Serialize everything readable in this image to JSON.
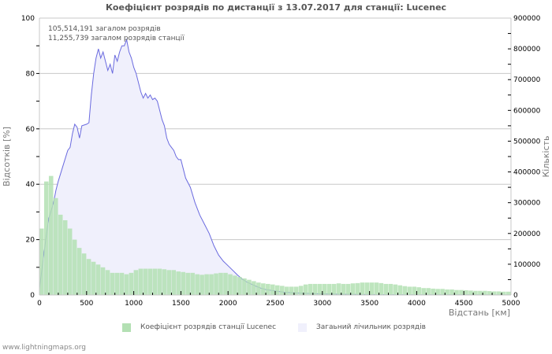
{
  "chart_data": {
    "type": "bar+area",
    "title": "Коефіцієнт розрядів по дистанції з 13.07.2017 для станції: Lucenec",
    "xlabel": "Відстань   [км]",
    "ylabel_left": "Відсотків   [%]",
    "ylabel_right": "Кількість",
    "xlim": [
      0,
      5000
    ],
    "ylim_left": [
      0,
      100
    ],
    "ylim_right": [
      0,
      900000
    ],
    "x_ticks": [
      "0",
      "500",
      "1000",
      "1500",
      "2000",
      "2500",
      "3000",
      "3500",
      "4000",
      "4500",
      "5000"
    ],
    "y_ticks_left": [
      "0",
      "20",
      "40",
      "60",
      "80",
      "100"
    ],
    "y_ticks_right": [
      "0",
      "100000",
      "200000",
      "300000",
      "400000",
      "500000",
      "600000",
      "700000",
      "800000",
      "900000"
    ],
    "grid": "horizontal at 20, 40, 60, 80 (%)",
    "legend_position": "bottom",
    "annotations": [
      "105,514,191 загалом розрядів",
      "11,255,739 загалом розрядів станції"
    ],
    "series": [
      {
        "name": "Коефіцієнт розрядів станції Lucenec",
        "type": "bar",
        "axis": "left",
        "color": "#b3e0b3",
        "x": [
          0,
          50,
          100,
          150,
          200,
          250,
          300,
          350,
          400,
          450,
          500,
          550,
          600,
          650,
          700,
          750,
          800,
          850,
          900,
          950,
          1000,
          1050,
          1100,
          1150,
          1200,
          1250,
          1300,
          1350,
          1400,
          1450,
          1500,
          1550,
          1600,
          1650,
          1700,
          1750,
          1800,
          1850,
          1900,
          1950,
          2000,
          2050,
          2100,
          2150,
          2200,
          2250,
          2300,
          2350,
          2400,
          2450,
          2500,
          2550,
          2600,
          2650,
          2700,
          2750,
          2800,
          2850,
          2900,
          2950,
          3000,
          3050,
          3100,
          3150,
          3200,
          3250,
          3300,
          3350,
          3400,
          3450,
          3500,
          3550,
          3600,
          3650,
          3700,
          3750,
          3800,
          3850,
          3900,
          3950,
          4000,
          4050,
          4100,
          4150,
          4200,
          4250,
          4300,
          4350,
          4400,
          4450,
          4500,
          4550,
          4600,
          4650,
          4700,
          4750,
          4800,
          4850,
          4900,
          4950
        ],
        "values": [
          24,
          41,
          43,
          35,
          29,
          27,
          24,
          20,
          17,
          15,
          13,
          12,
          11,
          10,
          9,
          8,
          8,
          8,
          7.5,
          8,
          9,
          9.5,
          9.5,
          9.5,
          9.5,
          9.5,
          9.3,
          9,
          9,
          8.5,
          8.3,
          8,
          8,
          7.5,
          7.3,
          7.5,
          7.5,
          7.8,
          8,
          8,
          7.5,
          7,
          6.5,
          6,
          5.5,
          5,
          4.5,
          4.2,
          4,
          3.8,
          3.5,
          3.3,
          3,
          3,
          3,
          3.3,
          3.8,
          4,
          4,
          4,
          4,
          4,
          4,
          4.2,
          4,
          4,
          4.2,
          4.3,
          4.5,
          4.5,
          4.5,
          4.5,
          4.3,
          4,
          4,
          3.8,
          3.5,
          3.2,
          3,
          3,
          2.8,
          2.5,
          2.5,
          2.3,
          2.2,
          2.2,
          2,
          2,
          1.8,
          1.8,
          1.7,
          1.6,
          1.5,
          1.5,
          1.5,
          1.4,
          1.3,
          1.3,
          1.2,
          1.2
        ]
      },
      {
        "name": "Загаьний лічильник розрядів",
        "type": "area",
        "axis": "right",
        "fill": "#f0f0fc",
        "line": "#6a6adf",
        "x": [
          0,
          25,
          50,
          75,
          100,
          125,
          150,
          175,
          200,
          250,
          300,
          325,
          350,
          375,
          400,
          425,
          450,
          500,
          525,
          550,
          575,
          600,
          625,
          650,
          675,
          700,
          725,
          750,
          775,
          800,
          825,
          850,
          875,
          900,
          925,
          950,
          975,
          1000,
          1025,
          1050,
          1075,
          1100,
          1125,
          1150,
          1175,
          1200,
          1225,
          1250,
          1275,
          1300,
          1325,
          1350,
          1375,
          1400,
          1425,
          1450,
          1475,
          1500,
          1550,
          1600,
          1650,
          1700,
          1750,
          1800,
          1850,
          1900,
          1950,
          2000,
          2050,
          2100,
          2150,
          2200,
          2250,
          2300,
          2350,
          2400,
          2500,
          2600,
          2700,
          2800,
          2900,
          3000,
          3200,
          3400,
          3600,
          3800,
          4000,
          4500,
          5000
        ],
        "values": [
          20000,
          80000,
          140000,
          200000,
          250000,
          275000,
          300000,
          340000,
          370000,
          420000,
          470000,
          480000,
          525000,
          555000,
          545000,
          510000,
          550000,
          555000,
          560000,
          650000,
          720000,
          770000,
          800000,
          770000,
          790000,
          760000,
          730000,
          750000,
          720000,
          780000,
          760000,
          790000,
          810000,
          810000,
          830000,
          790000,
          770000,
          740000,
          720000,
          690000,
          660000,
          640000,
          655000,
          640000,
          650000,
          635000,
          640000,
          630000,
          600000,
          570000,
          550000,
          510000,
          490000,
          480000,
          470000,
          450000,
          440000,
          440000,
          380000,
          350000,
          300000,
          260000,
          230000,
          200000,
          160000,
          130000,
          110000,
          95000,
          80000,
          65000,
          52000,
          42000,
          35000,
          28000,
          22000,
          18000,
          13000,
          9000,
          7000,
          5500,
          4500,
          3500,
          2500,
          1800,
          1300,
          1000,
          700,
          400,
          200
        ]
      }
    ]
  },
  "header": {
    "title": "Коефіцієнт розрядів по дистанції з 13.07.2017 для станції: Lucenec"
  },
  "annotations": {
    "line1": "105,514,191 загалом розрядів",
    "line2": "11,255,739 загалом розрядів станції"
  },
  "axes": {
    "x_label": "Відстань   [км]",
    "y_left_label": "Відсотків   [%]",
    "y_right_label": "Кількість"
  },
  "legend": {
    "items": [
      {
        "label": "Коефіцієнт розрядів станції Lucenec",
        "color": "#b3e0b3"
      },
      {
        "label": "Загаьний лічильник розрядів",
        "color": "#f0f0fc"
      }
    ]
  },
  "footer": {
    "text": "www.lightningmaps.org"
  }
}
